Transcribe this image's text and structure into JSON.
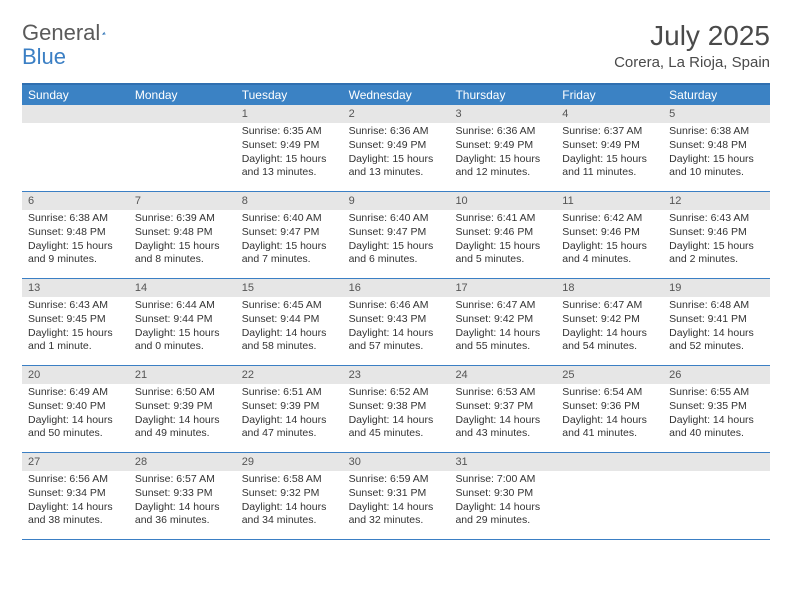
{
  "logo": {
    "general": "General",
    "blue": "Blue"
  },
  "title": "July 2025",
  "location": "Corera, La Rioja, Spain",
  "headers": [
    "Sunday",
    "Monday",
    "Tuesday",
    "Wednesday",
    "Thursday",
    "Friday",
    "Saturday"
  ],
  "colors": {
    "header_bg": "#3b82c4",
    "header_text": "#ffffff",
    "border": "#3b7fc4",
    "daynum_bg": "#e6e6e6",
    "text": "#333333",
    "logo_gray": "#5a5a5a",
    "logo_blue": "#3b7fc4"
  },
  "weeks": [
    [
      null,
      null,
      {
        "n": "1",
        "sr": "6:35 AM",
        "ss": "9:49 PM",
        "dl": "15 hours and 13 minutes."
      },
      {
        "n": "2",
        "sr": "6:36 AM",
        "ss": "9:49 PM",
        "dl": "15 hours and 13 minutes."
      },
      {
        "n": "3",
        "sr": "6:36 AM",
        "ss": "9:49 PM",
        "dl": "15 hours and 12 minutes."
      },
      {
        "n": "4",
        "sr": "6:37 AM",
        "ss": "9:49 PM",
        "dl": "15 hours and 11 minutes."
      },
      {
        "n": "5",
        "sr": "6:38 AM",
        "ss": "9:48 PM",
        "dl": "15 hours and 10 minutes."
      }
    ],
    [
      {
        "n": "6",
        "sr": "6:38 AM",
        "ss": "9:48 PM",
        "dl": "15 hours and 9 minutes."
      },
      {
        "n": "7",
        "sr": "6:39 AM",
        "ss": "9:48 PM",
        "dl": "15 hours and 8 minutes."
      },
      {
        "n": "8",
        "sr": "6:40 AM",
        "ss": "9:47 PM",
        "dl": "15 hours and 7 minutes."
      },
      {
        "n": "9",
        "sr": "6:40 AM",
        "ss": "9:47 PM",
        "dl": "15 hours and 6 minutes."
      },
      {
        "n": "10",
        "sr": "6:41 AM",
        "ss": "9:46 PM",
        "dl": "15 hours and 5 minutes."
      },
      {
        "n": "11",
        "sr": "6:42 AM",
        "ss": "9:46 PM",
        "dl": "15 hours and 4 minutes."
      },
      {
        "n": "12",
        "sr": "6:43 AM",
        "ss": "9:46 PM",
        "dl": "15 hours and 2 minutes."
      }
    ],
    [
      {
        "n": "13",
        "sr": "6:43 AM",
        "ss": "9:45 PM",
        "dl": "15 hours and 1 minute."
      },
      {
        "n": "14",
        "sr": "6:44 AM",
        "ss": "9:44 PM",
        "dl": "15 hours and 0 minutes."
      },
      {
        "n": "15",
        "sr": "6:45 AM",
        "ss": "9:44 PM",
        "dl": "14 hours and 58 minutes."
      },
      {
        "n": "16",
        "sr": "6:46 AM",
        "ss": "9:43 PM",
        "dl": "14 hours and 57 minutes."
      },
      {
        "n": "17",
        "sr": "6:47 AM",
        "ss": "9:42 PM",
        "dl": "14 hours and 55 minutes."
      },
      {
        "n": "18",
        "sr": "6:47 AM",
        "ss": "9:42 PM",
        "dl": "14 hours and 54 minutes."
      },
      {
        "n": "19",
        "sr": "6:48 AM",
        "ss": "9:41 PM",
        "dl": "14 hours and 52 minutes."
      }
    ],
    [
      {
        "n": "20",
        "sr": "6:49 AM",
        "ss": "9:40 PM",
        "dl": "14 hours and 50 minutes."
      },
      {
        "n": "21",
        "sr": "6:50 AM",
        "ss": "9:39 PM",
        "dl": "14 hours and 49 minutes."
      },
      {
        "n": "22",
        "sr": "6:51 AM",
        "ss": "9:39 PM",
        "dl": "14 hours and 47 minutes."
      },
      {
        "n": "23",
        "sr": "6:52 AM",
        "ss": "9:38 PM",
        "dl": "14 hours and 45 minutes."
      },
      {
        "n": "24",
        "sr": "6:53 AM",
        "ss": "9:37 PM",
        "dl": "14 hours and 43 minutes."
      },
      {
        "n": "25",
        "sr": "6:54 AM",
        "ss": "9:36 PM",
        "dl": "14 hours and 41 minutes."
      },
      {
        "n": "26",
        "sr": "6:55 AM",
        "ss": "9:35 PM",
        "dl": "14 hours and 40 minutes."
      }
    ],
    [
      {
        "n": "27",
        "sr": "6:56 AM",
        "ss": "9:34 PM",
        "dl": "14 hours and 38 minutes."
      },
      {
        "n": "28",
        "sr": "6:57 AM",
        "ss": "9:33 PM",
        "dl": "14 hours and 36 minutes."
      },
      {
        "n": "29",
        "sr": "6:58 AM",
        "ss": "9:32 PM",
        "dl": "14 hours and 34 minutes."
      },
      {
        "n": "30",
        "sr": "6:59 AM",
        "ss": "9:31 PM",
        "dl": "14 hours and 32 minutes."
      },
      {
        "n": "31",
        "sr": "7:00 AM",
        "ss": "9:30 PM",
        "dl": "14 hours and 29 minutes."
      },
      null,
      null
    ]
  ],
  "labels": {
    "sunrise": "Sunrise:",
    "sunset": "Sunset:",
    "daylight": "Daylight:"
  }
}
